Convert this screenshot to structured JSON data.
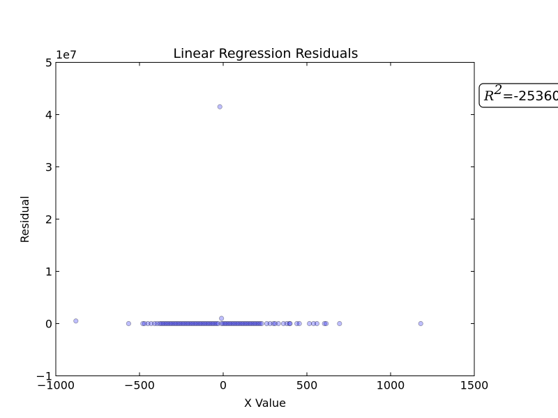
{
  "chart_data": {
    "type": "scatter",
    "title": "Linear Regression Residuals",
    "xlabel": "X Value",
    "ylabel": "Residual",
    "xlim": [
      -1000,
      1500
    ],
    "ylim": [
      -10000000,
      50000000
    ],
    "x_ticks": [
      -1000,
      -500,
      0,
      500,
      1000,
      1500
    ],
    "x_tick_labels": [
      "−1000",
      "−500",
      "0",
      "500",
      "1000",
      "1500"
    ],
    "y_ticks": [
      -10000000,
      0,
      10000000,
      20000000,
      30000000,
      40000000,
      50000000
    ],
    "y_tick_labels": [
      "−1",
      "0",
      "1",
      "2",
      "3",
      "4",
      "5"
    ],
    "y_offset_label": "1e7",
    "grid": false,
    "annotation": {
      "symbol": "R",
      "superscript": "2",
      "text": "=-25360"
    },
    "point_color": "#0000ff",
    "point_alpha": 0.25,
    "series": [
      {
        "points": [
          [
            -880,
            500000
          ],
          [
            -565,
            0
          ],
          [
            -480,
            0
          ],
          [
            -470,
            0
          ],
          [
            -450,
            0
          ],
          [
            -430,
            0
          ],
          [
            -410,
            0
          ],
          [
            -395,
            0
          ],
          [
            -380,
            0
          ],
          [
            -370,
            0
          ],
          [
            -360,
            0
          ],
          [
            -350,
            0
          ],
          [
            -340,
            0
          ],
          [
            -330,
            0
          ],
          [
            -320,
            0
          ],
          [
            -310,
            0
          ],
          [
            -300,
            0
          ],
          [
            -290,
            0
          ],
          [
            -280,
            0
          ],
          [
            -270,
            0
          ],
          [
            -260,
            0
          ],
          [
            -250,
            0
          ],
          [
            -240,
            0
          ],
          [
            -230,
            0
          ],
          [
            -220,
            0
          ],
          [
            -210,
            0
          ],
          [
            -200,
            0
          ],
          [
            -190,
            0
          ],
          [
            -180,
            0
          ],
          [
            -170,
            0
          ],
          [
            -160,
            0
          ],
          [
            -150,
            0
          ],
          [
            -140,
            0
          ],
          [
            -130,
            0
          ],
          [
            -120,
            0
          ],
          [
            -110,
            0
          ],
          [
            -100,
            0
          ],
          [
            -90,
            0
          ],
          [
            -80,
            0
          ],
          [
            -70,
            0
          ],
          [
            -60,
            0
          ],
          [
            -50,
            0
          ],
          [
            -40,
            0
          ],
          [
            -30,
            0
          ],
          [
            -20,
            41500000
          ],
          [
            -10,
            1000000
          ],
          [
            -10,
            0
          ],
          [
            0,
            0
          ],
          [
            10,
            0
          ],
          [
            20,
            0
          ],
          [
            30,
            0
          ],
          [
            40,
            0
          ],
          [
            50,
            0
          ],
          [
            60,
            0
          ],
          [
            70,
            0
          ],
          [
            80,
            0
          ],
          [
            90,
            0
          ],
          [
            100,
            0
          ],
          [
            110,
            0
          ],
          [
            120,
            0
          ],
          [
            130,
            0
          ],
          [
            140,
            0
          ],
          [
            150,
            0
          ],
          [
            160,
            0
          ],
          [
            170,
            0
          ],
          [
            180,
            0
          ],
          [
            190,
            0
          ],
          [
            200,
            0
          ],
          [
            210,
            0
          ],
          [
            220,
            0
          ],
          [
            230,
            0
          ],
          [
            260,
            0
          ],
          [
            280,
            0
          ],
          [
            300,
            0
          ],
          [
            310,
            0
          ],
          [
            330,
            0
          ],
          [
            360,
            0
          ],
          [
            380,
            0
          ],
          [
            395,
            0
          ],
          [
            400,
            0
          ],
          [
            440,
            0
          ],
          [
            455,
            0
          ],
          [
            515,
            0
          ],
          [
            540,
            0
          ],
          [
            560,
            0
          ],
          [
            605,
            0
          ],
          [
            615,
            0
          ],
          [
            695,
            0
          ],
          [
            1180,
            0
          ]
        ]
      }
    ]
  }
}
